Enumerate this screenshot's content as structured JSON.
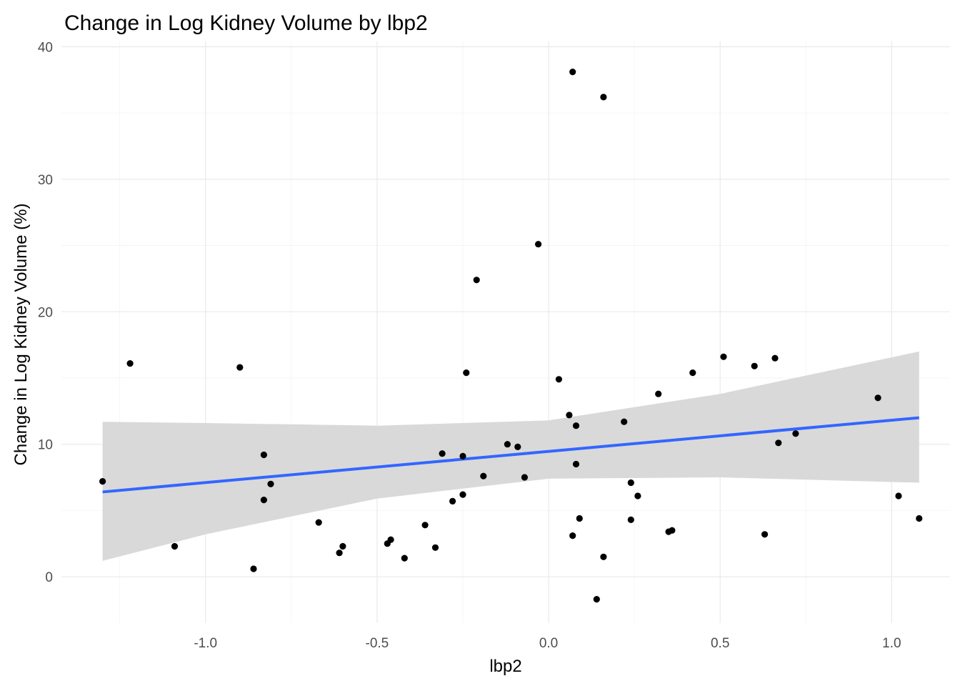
{
  "chart_data": {
    "type": "scatter",
    "title": "Change in Log Kidney Volume by lbp2",
    "xlabel": "lbp2",
    "ylabel": "Change in Log Kidney Volume (%)",
    "xlim": [
      -1.42,
      1.17
    ],
    "ylim": [
      -3.5,
      40.4
    ],
    "x_ticks": [
      -1.0,
      -0.5,
      0.0,
      0.5,
      1.0
    ],
    "x_tick_labels": [
      "-1.0",
      "-0.5",
      "0.0",
      "0.5",
      "1.0"
    ],
    "y_ticks": [
      0,
      10,
      20,
      30,
      40
    ],
    "y_tick_labels": [
      "0",
      "10",
      "20",
      "30",
      "40"
    ],
    "grid": true,
    "legend": "none",
    "points": [
      {
        "x": -1.3,
        "y": 7.2
      },
      {
        "x": -1.22,
        "y": 16.1
      },
      {
        "x": -1.09,
        "y": 2.3
      },
      {
        "x": -0.9,
        "y": 15.8
      },
      {
        "x": -0.86,
        "y": 0.6
      },
      {
        "x": -0.83,
        "y": 9.2
      },
      {
        "x": -0.83,
        "y": 5.8
      },
      {
        "x": -0.81,
        "y": 7.0
      },
      {
        "x": -0.67,
        "y": 4.1
      },
      {
        "x": -0.61,
        "y": 1.8
      },
      {
        "x": -0.6,
        "y": 2.3
      },
      {
        "x": -0.47,
        "y": 2.5
      },
      {
        "x": -0.46,
        "y": 2.8
      },
      {
        "x": -0.42,
        "y": 1.4
      },
      {
        "x": -0.36,
        "y": 3.9
      },
      {
        "x": -0.33,
        "y": 2.2
      },
      {
        "x": -0.31,
        "y": 9.3
      },
      {
        "x": -0.28,
        "y": 5.7
      },
      {
        "x": -0.25,
        "y": 9.1
      },
      {
        "x": -0.25,
        "y": 6.2
      },
      {
        "x": -0.24,
        "y": 15.4
      },
      {
        "x": -0.21,
        "y": 22.4
      },
      {
        "x": -0.19,
        "y": 7.6
      },
      {
        "x": -0.12,
        "y": 10.0
      },
      {
        "x": -0.09,
        "y": 9.8
      },
      {
        "x": -0.07,
        "y": 7.5
      },
      {
        "x": -0.03,
        "y": 25.1
      },
      {
        "x": 0.03,
        "y": 14.9
      },
      {
        "x": 0.06,
        "y": 12.2
      },
      {
        "x": 0.07,
        "y": 3.1
      },
      {
        "x": 0.07,
        "y": 38.1
      },
      {
        "x": 0.08,
        "y": 11.4
      },
      {
        "x": 0.08,
        "y": 8.5
      },
      {
        "x": 0.09,
        "y": 4.4
      },
      {
        "x": 0.14,
        "y": -1.7
      },
      {
        "x": 0.16,
        "y": 1.5
      },
      {
        "x": 0.16,
        "y": 36.2
      },
      {
        "x": 0.22,
        "y": 11.7
      },
      {
        "x": 0.24,
        "y": 7.1
      },
      {
        "x": 0.24,
        "y": 4.3
      },
      {
        "x": 0.26,
        "y": 6.1
      },
      {
        "x": 0.32,
        "y": 13.8
      },
      {
        "x": 0.35,
        "y": 3.4
      },
      {
        "x": 0.36,
        "y": 3.5
      },
      {
        "x": 0.42,
        "y": 15.4
      },
      {
        "x": 0.51,
        "y": 16.6
      },
      {
        "x": 0.6,
        "y": 15.9
      },
      {
        "x": 0.63,
        "y": 3.2
      },
      {
        "x": 0.66,
        "y": 16.5
      },
      {
        "x": 0.67,
        "y": 10.1
      },
      {
        "x": 0.72,
        "y": 10.8
      },
      {
        "x": 0.96,
        "y": 13.5
      },
      {
        "x": 1.02,
        "y": 6.1
      },
      {
        "x": 1.08,
        "y": 4.4
      }
    ],
    "trend_line": {
      "method": "linear",
      "x": [
        -1.3,
        1.08
      ],
      "y": [
        6.4,
        12.0
      ],
      "color": "#3366ff"
    },
    "confidence_band": {
      "x": [
        -1.3,
        -1.0,
        -0.5,
        0.0,
        0.5,
        1.08
      ],
      "lower": [
        1.2,
        3.2,
        5.9,
        7.4,
        7.5,
        7.1
      ],
      "upper": [
        11.7,
        11.6,
        11.4,
        11.8,
        13.8,
        17.0
      ],
      "color": "#d9d9d9"
    },
    "colors": {
      "points": "#000000",
      "trend_line": "#3366ff",
      "band": "#d9d9d9",
      "grid": "#ebebeb",
      "tick_text": "#4d4d4d"
    }
  }
}
